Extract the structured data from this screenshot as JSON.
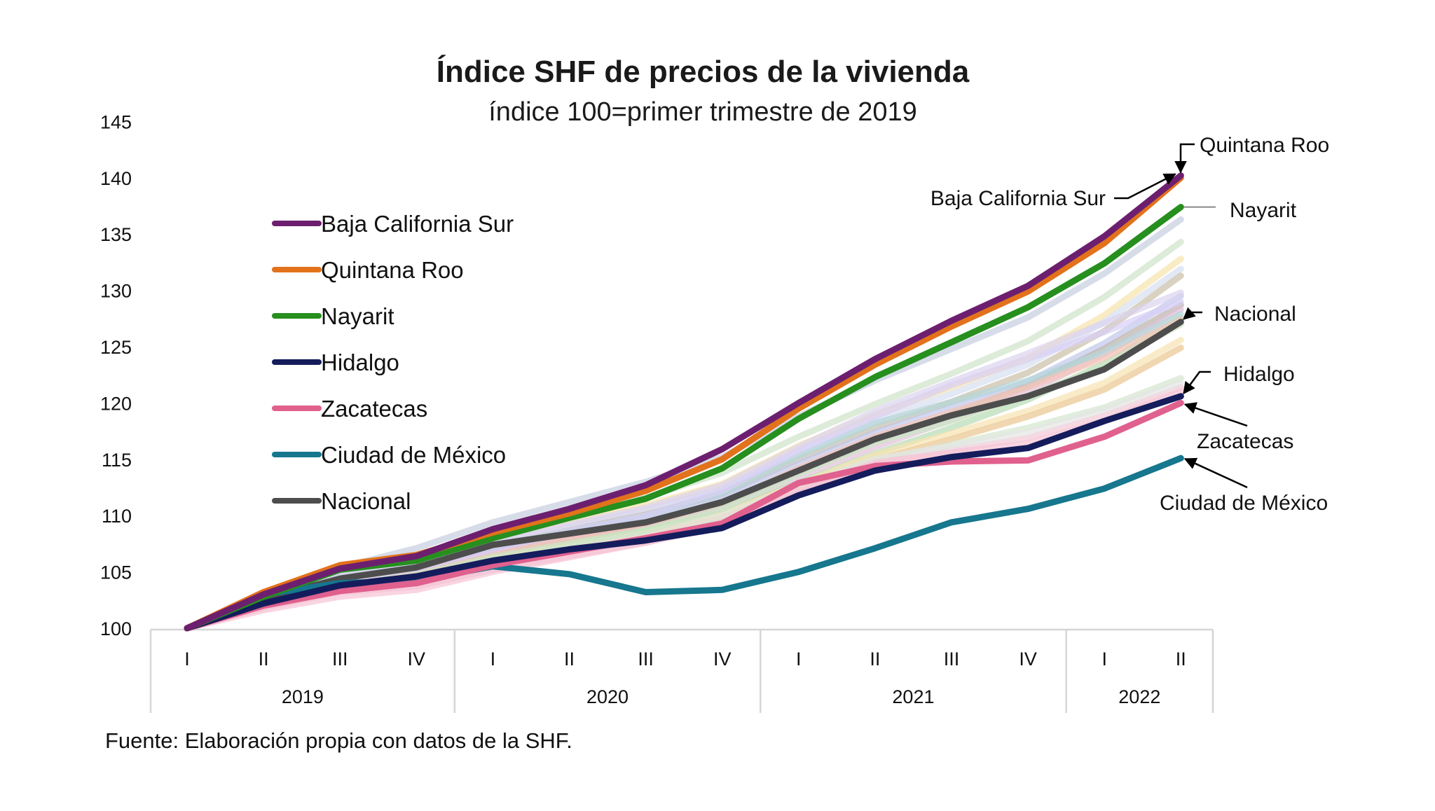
{
  "chart_data": {
    "type": "line",
    "title": "Índice SHF de precios de la vivienda",
    "subtitle": "índice 100=primer trimestre de 2019",
    "xlabel": "",
    "ylabel": "",
    "ylim": [
      100,
      145
    ],
    "yticks": [
      "100",
      "105",
      "110",
      "115",
      "120",
      "125",
      "130",
      "135",
      "140",
      "145"
    ],
    "grid": false,
    "x": [
      "2019-I",
      "2019-II",
      "2019-III",
      "2019-IV",
      "2020-I",
      "2020-II",
      "2020-III",
      "2020-IV",
      "2021-I",
      "2021-II",
      "2021-III",
      "2021-IV",
      "2022-I",
      "2022-II"
    ],
    "quarter_labels": [
      "I",
      "II",
      "III",
      "IV",
      "I",
      "II",
      "III",
      "IV",
      "I",
      "II",
      "III",
      "IV",
      "I",
      "II"
    ],
    "year_groups": [
      {
        "label": "2019",
        "count": 4
      },
      {
        "label": "2020",
        "count": 4
      },
      {
        "label": "2021",
        "count": 4
      },
      {
        "label": "2022",
        "count": 2
      }
    ],
    "legend_position": "top-left",
    "series": [
      {
        "name": "Baja California Sur",
        "color": "#6d1f6f",
        "highlight": true,
        "values": [
          100,
          103.0,
          105.3,
          106.4,
          108.8,
          110.6,
          112.7,
          115.9,
          120.0,
          123.9,
          127.3,
          130.4,
          134.8,
          140.2
        ]
      },
      {
        "name": "Quintana Roo",
        "color": "#e2721b",
        "highlight": true,
        "values": [
          100,
          103.2,
          105.6,
          106.5,
          108.5,
          110.2,
          112.2,
          115.0,
          119.5,
          123.4,
          126.8,
          129.9,
          134.2,
          140.0
        ]
      },
      {
        "name": "Nayarit",
        "color": "#268f1e",
        "highlight": true,
        "values": [
          100,
          102.8,
          105.2,
          106.0,
          108.0,
          109.8,
          111.5,
          114.2,
          118.6,
          122.3,
          125.4,
          128.5,
          132.4,
          137.4
        ]
      },
      {
        "name": "Hidalgo",
        "color": "#141c5c",
        "highlight": true,
        "values": [
          100,
          102.2,
          103.8,
          104.6,
          106.0,
          107.0,
          107.8,
          108.9,
          111.8,
          114.0,
          115.2,
          116.0,
          118.4,
          120.6
        ]
      },
      {
        "name": "Zacatecas",
        "color": "#e0608e",
        "highlight": true,
        "values": [
          100,
          102.0,
          103.3,
          104.0,
          105.6,
          106.8,
          108.0,
          109.3,
          112.9,
          114.4,
          114.8,
          114.9,
          117.0,
          120.0
        ]
      },
      {
        "name": "Ciudad de México",
        "color": "#16778e",
        "highlight": true,
        "values": [
          100,
          103.0,
          104.0,
          104.2,
          105.5,
          104.8,
          103.2,
          103.4,
          105.0,
          107.1,
          109.4,
          110.6,
          112.4,
          115.1
        ]
      },
      {
        "name": "Nacional",
        "color": "#4d4d4d",
        "highlight": true,
        "values": [
          100,
          102.6,
          104.4,
          105.4,
          107.4,
          108.4,
          109.4,
          111.2,
          114.0,
          116.8,
          118.9,
          120.6,
          123.0,
          127.2
        ]
      }
    ],
    "background_series": [
      {
        "color": "#c6cde0",
        "values": [
          100,
          103.1,
          105.4,
          107.1,
          109.4,
          111.2,
          113.0,
          115.2,
          118.8,
          122.0,
          124.8,
          127.6,
          131.5,
          136.3
        ]
      },
      {
        "color": "#cfe3c9",
        "values": [
          100,
          102.7,
          104.9,
          106.3,
          108.2,
          109.9,
          111.6,
          113.8,
          117.0,
          119.9,
          122.6,
          125.5,
          129.4,
          134.3
        ]
      },
      {
        "color": "#f7e2a9",
        "values": [
          100,
          102.5,
          104.6,
          106.0,
          107.9,
          109.4,
          110.9,
          112.8,
          116.2,
          119.0,
          121.4,
          124.0,
          127.8,
          132.8
        ]
      },
      {
        "color": "#d5def0",
        "values": [
          100,
          102.6,
          104.7,
          105.9,
          107.6,
          109.0,
          110.5,
          112.4,
          115.6,
          118.4,
          120.8,
          123.4,
          127.2,
          131.9
        ]
      },
      {
        "color": "#c9bfa6",
        "values": [
          100,
          102.4,
          104.5,
          105.7,
          107.3,
          108.7,
          110.1,
          111.9,
          115.0,
          117.8,
          120.1,
          122.7,
          126.4,
          131.3
        ]
      },
      {
        "color": "#c0c6ea",
        "values": [
          100,
          102.5,
          104.5,
          105.6,
          107.2,
          108.5,
          109.8,
          111.6,
          114.6,
          117.4,
          119.6,
          121.9,
          125.3,
          129.5
        ]
      },
      {
        "color": "#b9b0a8",
        "values": [
          100,
          102.4,
          104.3,
          105.3,
          106.9,
          108.1,
          109.3,
          111.0,
          113.9,
          116.7,
          119.0,
          121.5,
          124.8,
          128.7
        ]
      },
      {
        "color": "#e2bfd8",
        "values": [
          100,
          102.3,
          104.1,
          105.1,
          106.7,
          107.9,
          109.0,
          110.6,
          113.4,
          116.1,
          118.5,
          121.0,
          124.3,
          128.3
        ]
      },
      {
        "color": "#b7dcb5",
        "values": [
          100,
          102.2,
          103.9,
          104.9,
          106.4,
          107.6,
          108.7,
          110.2,
          112.9,
          115.5,
          117.8,
          120.3,
          123.5,
          127.6
        ]
      },
      {
        "color": "#b3d6d8",
        "values": [
          100,
          102.6,
          104.6,
          105.6,
          107.3,
          108.6,
          110.0,
          112.0,
          115.3,
          118.2,
          120.1,
          122.0,
          124.5,
          127.9
        ]
      },
      {
        "color": "#f3c4b8",
        "values": [
          100,
          102.3,
          104.0,
          104.8,
          106.5,
          107.9,
          109.3,
          111.0,
          114.2,
          117.0,
          119.2,
          121.4,
          124.0,
          127.4
        ]
      },
      {
        "color": "#d9cef7",
        "values": [
          100,
          102.5,
          104.3,
          105.3,
          107.0,
          108.6,
          110.0,
          112.2,
          115.8,
          118.8,
          121.6,
          123.9,
          126.3,
          129.0
        ]
      },
      {
        "color": "#f8e3b0",
        "values": [
          100,
          102.1,
          103.7,
          104.5,
          106.1,
          107.3,
          108.5,
          110.1,
          112.8,
          115.4,
          117.3,
          119.3,
          121.8,
          125.6
        ]
      },
      {
        "color": "#e9c690",
        "values": [
          100,
          102.0,
          103.6,
          104.3,
          105.9,
          107.0,
          108.2,
          109.8,
          112.4,
          114.9,
          116.8,
          118.8,
          121.2,
          124.9
        ]
      },
      {
        "color": "#d4e6cf",
        "values": [
          100,
          102.0,
          103.5,
          104.2,
          105.7,
          106.8,
          107.9,
          109.5,
          112.3,
          114.9,
          116.3,
          117.8,
          119.6,
          122.2
        ]
      },
      {
        "color": "#f1c8d4",
        "values": [
          100,
          101.8,
          103.2,
          103.7,
          105.2,
          106.4,
          107.6,
          109.1,
          112.0,
          114.6,
          115.8,
          116.9,
          118.9,
          121.4
        ]
      },
      {
        "color": "#e6e6e6",
        "values": [
          100,
          102.1,
          103.6,
          104.4,
          106.0,
          107.2,
          108.4,
          110.0,
          112.6,
          115.0,
          116.2,
          117.4,
          119.4,
          121.8
        ]
      },
      {
        "color": "#f7c3d5",
        "values": [
          100,
          101.6,
          102.8,
          103.4,
          105.0,
          106.3,
          107.6,
          109.4,
          112.2,
          114.7,
          115.6,
          116.4,
          118.4,
          121.0
        ]
      },
      {
        "color": "#cae6c4",
        "values": [
          100,
          102.2,
          103.8,
          104.7,
          106.3,
          107.5,
          108.7,
          110.6,
          113.7,
          116.5,
          118.4,
          120.6,
          123.3,
          127.0
        ]
      },
      {
        "color": "#dcd3ef",
        "values": [
          100,
          102.7,
          104.8,
          105.9,
          107.7,
          109.2,
          110.7,
          112.7,
          116.1,
          119.3,
          121.9,
          124.4,
          127.1,
          129.8
        ]
      }
    ],
    "annotations": [
      {
        "label": "Quintana Roo",
        "target": "Quintana Roo"
      },
      {
        "label": "Baja California Sur",
        "target": "Baja California Sur"
      },
      {
        "label": "Nayarit",
        "target": "Nayarit"
      },
      {
        "label": "Nacional",
        "target": "Nacional"
      },
      {
        "label": "Hidalgo",
        "target": "Hidalgo"
      },
      {
        "label": "Zacatecas",
        "target": "Zacatecas"
      },
      {
        "label": "Ciudad de México",
        "target": "Ciudad de México"
      }
    ],
    "source": "Fuente: Elaboración propia con datos de la SHF."
  }
}
